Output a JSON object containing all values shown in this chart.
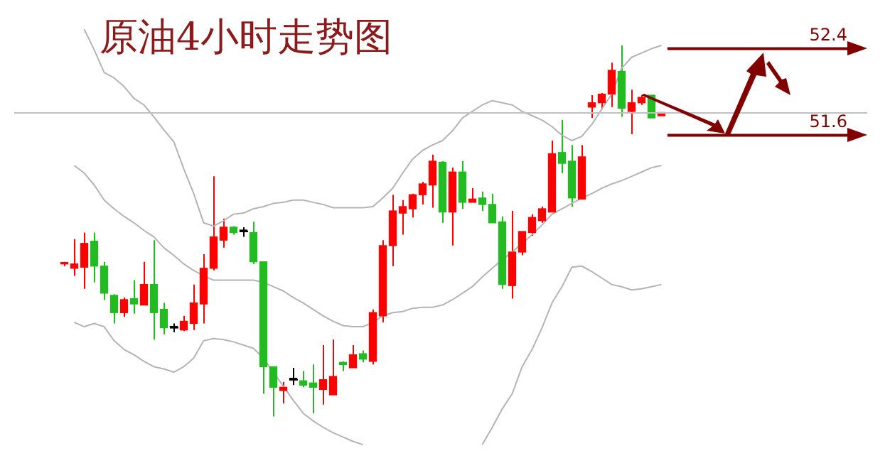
{
  "chart_data": {
    "type": "candlestick",
    "title": "原油4小时走势图",
    "categories": [
      null,
      null,
      null,
      null,
      null,
      null,
      null,
      null,
      null,
      null,
      null,
      null,
      null,
      null,
      null,
      null,
      null,
      null,
      null,
      null,
      null,
      null,
      null,
      null,
      null,
      null,
      null,
      null,
      null,
      null,
      null,
      null,
      null,
      null,
      null,
      null,
      null,
      null,
      null,
      null,
      null,
      null,
      null,
      null,
      null,
      null,
      null,
      null,
      null,
      null,
      null,
      null,
      null,
      null,
      null,
      null,
      null,
      null,
      null,
      null,
      null
    ],
    "ohlc": [
      [
        50.42,
        50.43,
        50.39,
        50.41
      ],
      [
        50.37,
        50.64,
        50.3,
        50.41
      ],
      [
        50.38,
        50.7,
        50.18,
        50.6
      ],
      [
        50.62,
        50.7,
        50.24,
        50.39
      ],
      [
        50.39,
        50.43,
        50.08,
        50.14
      ],
      [
        50.12,
        50.13,
        49.86,
        49.96
      ],
      [
        49.96,
        50.1,
        49.92,
        50.08
      ],
      [
        50.09,
        50.26,
        49.95,
        50.04
      ],
      [
        50.03,
        50.43,
        50.03,
        50.22
      ],
      [
        50.22,
        50.63,
        49.71,
        49.96
      ],
      [
        49.99,
        50.05,
        49.76,
        49.82
      ],
      [
        49.82,
        49.86,
        49.78,
        49.82
      ],
      [
        49.8,
        49.93,
        49.79,
        49.88
      ],
      [
        49.86,
        50.22,
        49.8,
        50.05
      ],
      [
        50.04,
        50.5,
        49.86,
        50.37
      ],
      [
        50.37,
        51.22,
        50.35,
        50.66
      ],
      [
        50.63,
        50.83,
        50.56,
        50.75
      ],
      [
        50.75,
        50.76,
        50.68,
        50.7
      ],
      [
        50.71,
        50.75,
        50.66,
        50.71
      ],
      [
        50.7,
        50.8,
        50.41,
        50.43
      ],
      [
        50.43,
        50.43,
        49.21,
        49.46
      ],
      [
        49.46,
        49.46,
        49.0,
        49.27
      ],
      [
        49.24,
        49.32,
        49.12,
        49.27
      ],
      [
        49.34,
        49.45,
        49.29,
        49.34
      ],
      [
        49.33,
        49.42,
        49.27,
        49.29
      ],
      [
        49.31,
        49.48,
        49.03,
        49.27
      ],
      [
        49.25,
        49.66,
        49.11,
        49.34
      ],
      [
        49.2,
        49.71,
        49.2,
        49.37
      ],
      [
        49.5,
        49.51,
        49.42,
        49.48
      ],
      [
        49.45,
        49.66,
        49.45,
        49.57
      ],
      [
        49.58,
        49.61,
        49.5,
        49.53
      ],
      [
        49.51,
        49.99,
        49.48,
        49.96
      ],
      [
        49.93,
        50.63,
        49.87,
        50.58
      ],
      [
        50.58,
        51.05,
        50.39,
        50.9
      ],
      [
        50.88,
        51.0,
        50.68,
        50.94
      ],
      [
        50.92,
        51.06,
        50.84,
        51.05
      ],
      [
        51.05,
        51.17,
        50.96,
        51.15
      ],
      [
        51.14,
        51.42,
        50.93,
        51.36
      ],
      [
        51.35,
        51.36,
        50.79,
        50.89
      ],
      [
        50.89,
        51.3,
        50.58,
        51.26
      ],
      [
        51.26,
        51.36,
        50.92,
        50.98
      ],
      [
        50.98,
        51.11,
        50.98,
        51.01
      ],
      [
        51.02,
        51.08,
        50.9,
        50.96
      ],
      [
        50.96,
        51.06,
        50.79,
        50.79
      ],
      [
        50.8,
        50.85,
        50.18,
        50.22
      ],
      [
        50.21,
        50.9,
        50.09,
        50.52
      ],
      [
        50.52,
        50.71,
        50.49,
        50.71
      ],
      [
        50.7,
        50.87,
        50.67,
        50.84
      ],
      [
        50.81,
        50.94,
        50.79,
        50.92
      ],
      [
        50.89,
        51.55,
        50.89,
        51.43
      ],
      [
        51.44,
        51.74,
        51.25,
        51.34
      ],
      [
        51.36,
        51.51,
        50.94,
        51.02
      ],
      [
        51.01,
        51.51,
        51.01,
        51.4
      ],
      [
        51.86,
        51.97,
        51.76,
        51.9
      ],
      [
        51.9,
        51.99,
        51.84,
        51.98
      ],
      [
        51.98,
        52.27,
        51.86,
        52.2
      ],
      [
        52.19,
        52.43,
        51.77,
        51.85
      ],
      [
        51.82,
        52.02,
        51.61,
        51.9
      ],
      [
        51.9,
        51.97,
        51.88,
        51.95
      ],
      [
        51.97,
        51.97,
        51.76,
        51.76
      ],
      [
        51.78,
        51.81,
        51.78,
        51.81
      ]
    ],
    "colors": [
      "#ff0000",
      "#ff0000",
      "#ff0000",
      "#22bb22",
      "#22bb22",
      "#22bb22",
      "#ff0000",
      "#22bb22",
      "#ff0000",
      "#22bb22",
      "#22bb22",
      "#000000",
      "#ff0000",
      "#ff0000",
      "#ff0000",
      "#ff0000",
      "#ff0000",
      "#22bb22",
      "#000000",
      "#22bb22",
      "#22bb22",
      "#22bb22",
      "#ff0000",
      "#000000",
      "#22bb22",
      "#22bb22",
      "#ff0000",
      "#ff0000",
      "#22bb22",
      "#ff0000",
      "#22bb22",
      "#ff0000",
      "#ff0000",
      "#ff0000",
      "#ff0000",
      "#ff0000",
      "#ff0000",
      "#ff0000",
      "#22bb22",
      "#ff0000",
      "#22bb22",
      "#ff0000",
      "#22bb22",
      "#22bb22",
      "#22bb22",
      "#ff0000",
      "#ff0000",
      "#ff0000",
      "#ff0000",
      "#ff0000",
      "#22bb22",
      "#22bb22",
      "#ff0000",
      "#ff0000",
      "#ff0000",
      "#ff0000",
      "#22bb22",
      "#ff0000",
      "#ff0000",
      "#22bb22",
      "#ff0000"
    ],
    "series": [
      {
        "type": "line",
        "color": "#b4b4b4",
        "values": [
          null,
          null,
          52.58,
          52.39,
          52.18,
          52.13,
          52.05,
          51.94,
          51.88,
          51.77,
          51.65,
          51.54,
          51.29,
          51.06,
          50.79,
          50.76,
          50.81,
          50.87,
          50.88,
          50.92,
          50.94,
          50.97,
          50.98,
          51.0,
          51.0,
          50.98,
          50.96,
          50.93,
          50.93,
          50.93,
          50.93,
          50.94,
          51.02,
          51.11,
          51.25,
          51.38,
          51.46,
          51.51,
          51.55,
          51.64,
          51.76,
          51.82,
          51.88,
          51.92,
          51.9,
          51.88,
          51.82,
          51.78,
          51.74,
          51.68,
          51.6,
          51.55,
          51.59,
          51.7,
          51.84,
          51.98,
          52.22,
          52.32,
          52.36,
          52.4,
          52.43
        ]
      },
      {
        "type": "line",
        "color": "#b4b4b4",
        "values": [
          null,
          51.32,
          51.25,
          51.14,
          51.0,
          50.92,
          50.85,
          50.79,
          50.72,
          50.66,
          50.56,
          50.49,
          50.41,
          50.35,
          50.3,
          50.26,
          50.26,
          50.26,
          50.26,
          50.26,
          50.24,
          50.2,
          50.16,
          50.1,
          50.05,
          49.99,
          49.93,
          49.88,
          49.84,
          49.83,
          49.83,
          49.87,
          49.93,
          49.96,
          49.97,
          50.0,
          50.01,
          50.01,
          50.03,
          50.08,
          50.14,
          50.2,
          50.29,
          50.37,
          50.45,
          50.52,
          50.6,
          50.68,
          50.77,
          50.87,
          50.92,
          50.97,
          51.02,
          51.06,
          51.11,
          51.15,
          51.18,
          51.22,
          51.26,
          51.3,
          51.32
        ]
      },
      {
        "type": "line",
        "color": "#b4b4b4",
        "values": [
          null,
          49.87,
          49.83,
          49.86,
          49.83,
          49.7,
          49.62,
          49.57,
          49.51,
          49.46,
          49.44,
          49.41,
          49.46,
          49.54,
          49.7,
          49.72,
          49.71,
          49.69,
          49.66,
          49.63,
          49.54,
          49.41,
          49.28,
          49.15,
          49.03,
          48.96,
          48.9,
          48.85,
          48.81,
          48.77,
          48.74,
          null,
          null,
          null,
          null,
          null,
          null,
          null,
          null,
          null,
          null,
          null,
          48.74,
          48.9,
          49.07,
          49.21,
          49.46,
          49.62,
          49.82,
          50.05,
          50.2,
          50.38,
          50.39,
          50.34,
          50.28,
          50.22,
          50.2,
          50.17,
          50.18,
          50.2,
          50.22
        ]
      }
    ],
    "ylim": [
      48.57,
      52.85
    ],
    "tick_labels": false,
    "ref_lines": [
      {
        "axis": "y",
        "value": 51.81,
        "color": "#c0c0c0"
      },
      {
        "axis": "y",
        "value": 52.4,
        "label": "52.4",
        "color": "#800000"
      },
      {
        "axis": "y",
        "value": 51.6,
        "label": "51.6",
        "color": "#800000"
      }
    ]
  }
}
